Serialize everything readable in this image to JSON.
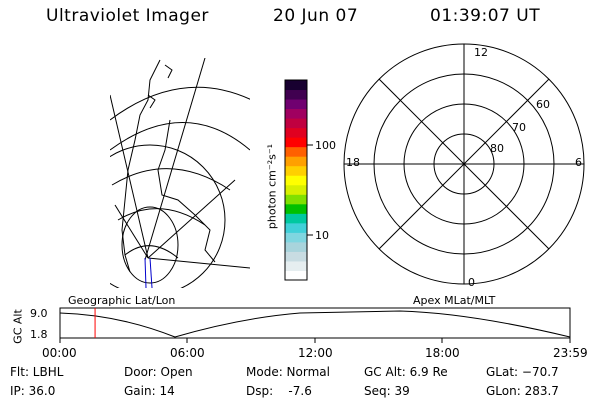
{
  "header": {
    "title": "Ultraviolet Imager",
    "date": "20 Jun 07",
    "time": "01:39:07 UT"
  },
  "colorbar": {
    "unit_label": "photon cm⁻²s⁻¹",
    "ticks": [
      "100",
      "10"
    ],
    "colors": [
      "#ffffff",
      "#e6eef0",
      "#c8dce2",
      "#a8d4dc",
      "#7fd6e0",
      "#40d0d8",
      "#00c8a0",
      "#00c000",
      "#80e000",
      "#d8f000",
      "#ffff00",
      "#ffd000",
      "#ffa000",
      "#ff6000",
      "#ff0000",
      "#e00020",
      "#c00040",
      "#a00060",
      "#700070",
      "#400050",
      "#180030"
    ]
  },
  "polar_plot": {
    "mlt_labels": {
      "top": "12",
      "left": "18",
      "right": "6",
      "bottom": "0"
    },
    "lat_labels": [
      "60",
      "70",
      "80"
    ]
  },
  "timeline": {
    "ylabel": "GC Alt",
    "yticks": [
      "9.0",
      "1.8"
    ],
    "left_title": "Geographic Lat/Lon",
    "right_title": "Apex MLat/MLT",
    "xticks": [
      "00:00",
      "06:00",
      "12:00",
      "18:00",
      "23:59"
    ],
    "marker_time_hours": 1.65,
    "marker_color": "#ff0000"
  },
  "info": {
    "flt": "Flt: LBHL",
    "ip": "IP: 36.0",
    "door": "Door: Open",
    "gain": "Gain: 14",
    "mode": "Mode: Normal",
    "dsp": "Dsp:    -7.6",
    "gcalt": "GC Alt: 6.9 Re",
    "seq": "Seq: 39",
    "glat": "GLat: −70.7",
    "glon": "GLon: 283.7"
  }
}
